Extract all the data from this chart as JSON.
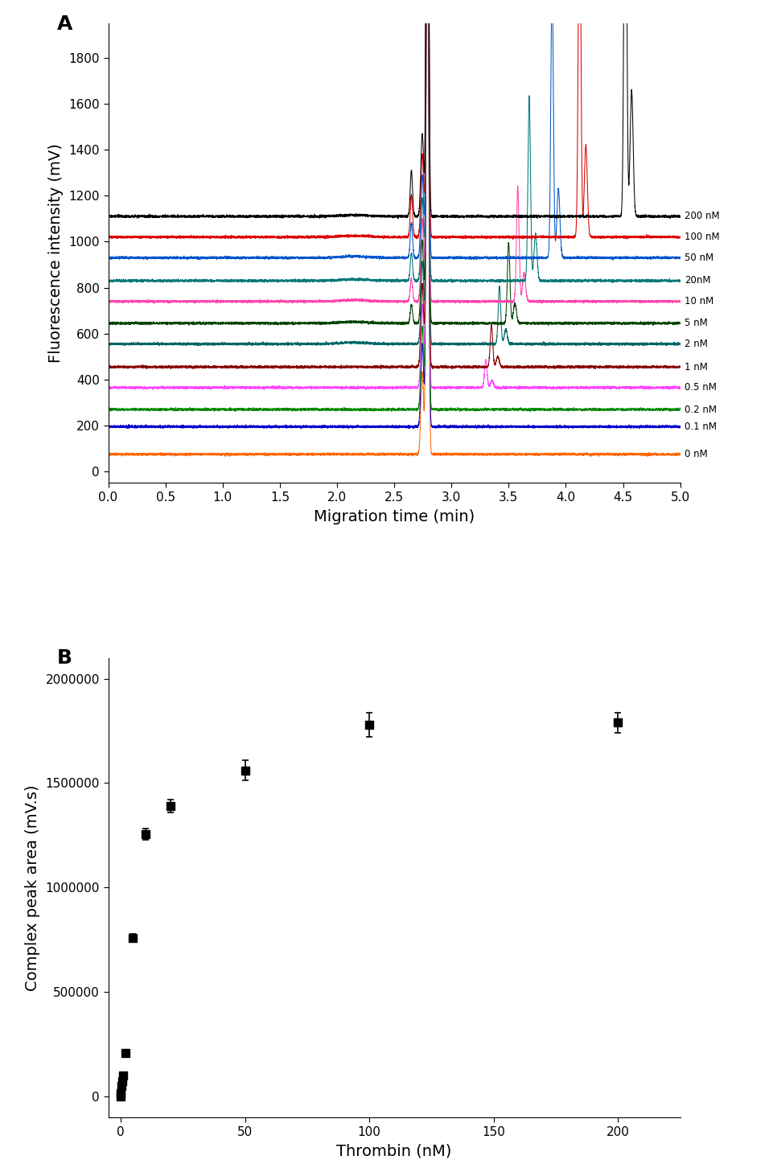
{
  "panel_A": {
    "xlabel": "Migration time (min)",
    "ylabel": "Fluorescence intensity (mV)",
    "xlim": [
      0.0,
      5.0
    ],
    "ylim": [
      -50,
      1950
    ],
    "xticks": [
      0.0,
      0.5,
      1.0,
      1.5,
      2.0,
      2.5,
      3.0,
      3.5,
      4.0,
      4.5,
      5.0
    ],
    "yticks": [
      0,
      200,
      400,
      600,
      800,
      1000,
      1200,
      1400,
      1600,
      1800
    ],
    "label": "A",
    "traces": [
      {
        "conc": "0 nM",
        "color": "#FF6600",
        "baseline": 75,
        "main_peak": 2.79,
        "main_amp": 3000,
        "complex_peak": null,
        "complex_amp": 0,
        "small_peak": null,
        "small_amp": 0
      },
      {
        "conc": "0.1 nM",
        "color": "#0000CC",
        "baseline": 195,
        "main_peak": 2.79,
        "main_amp": 3000,
        "complex_peak": null,
        "complex_amp": 0,
        "small_peak": null,
        "small_amp": 0
      },
      {
        "conc": "0.2 nM",
        "color": "#008800",
        "baseline": 270,
        "main_peak": 2.79,
        "main_amp": 3000,
        "complex_peak": null,
        "complex_amp": 0,
        "small_peak": null,
        "small_amp": 0
      },
      {
        "conc": "0.5 nM",
        "color": "#FF44FF",
        "baseline": 365,
        "main_peak": 2.79,
        "main_amp": 3000,
        "complex_peak": 3.3,
        "complex_amp": 120,
        "small_peak": null,
        "small_amp": 0
      },
      {
        "conc": "1 nM",
        "color": "#880000",
        "baseline": 455,
        "main_peak": 2.79,
        "main_amp": 3000,
        "complex_peak": 3.35,
        "complex_amp": 180,
        "small_peak": null,
        "small_amp": 0
      },
      {
        "conc": "2 nM",
        "color": "#006666",
        "baseline": 555,
        "main_peak": 2.79,
        "main_amp": 3000,
        "complex_peak": 3.42,
        "complex_amp": 250,
        "small_peak": null,
        "small_amp": 0
      },
      {
        "conc": "5 nM",
        "color": "#004400",
        "baseline": 645,
        "main_peak": 2.79,
        "main_amp": 3000,
        "complex_peak": 3.5,
        "complex_amp": 350,
        "small_peak": 2.65,
        "small_amp": 80
      },
      {
        "conc": "10 nM",
        "color": "#FF44AA",
        "baseline": 740,
        "main_peak": 2.79,
        "main_amp": 3000,
        "complex_peak": 3.58,
        "complex_amp": 500,
        "small_peak": 2.65,
        "small_amp": 100
      },
      {
        "conc": "20nM",
        "color": "#007777",
        "baseline": 830,
        "main_peak": 2.79,
        "main_amp": 3000,
        "complex_peak": 3.68,
        "complex_amp": 800,
        "small_peak": 2.65,
        "small_amp": 120
      },
      {
        "conc": "50 nM",
        "color": "#0055CC",
        "baseline": 930,
        "main_peak": 2.79,
        "main_amp": 3000,
        "complex_peak": 3.88,
        "complex_amp": 1200,
        "small_peak": 2.65,
        "small_amp": 150
      },
      {
        "conc": "100 nM",
        "color": "#DD0000",
        "baseline": 1020,
        "main_peak": 2.79,
        "main_amp": 3000,
        "complex_peak": 4.12,
        "complex_amp": 1600,
        "small_peak": 2.65,
        "small_amp": 180
      },
      {
        "conc": "200 nM",
        "color": "#000000",
        "baseline": 1110,
        "main_peak": 2.79,
        "main_amp": 3000,
        "complex_peak": 4.52,
        "complex_amp": 2200,
        "small_peak": 2.65,
        "small_amp": 200
      }
    ]
  },
  "panel_B": {
    "xlabel": "Thrombin (nM)",
    "ylabel": "Complex peak area (mV.s)",
    "xlim": [
      -5,
      225
    ],
    "ylim": [
      -100000,
      2100000
    ],
    "xticks": [
      0,
      50,
      100,
      150,
      200
    ],
    "yticks": [
      0,
      500000,
      1000000,
      1500000,
      2000000
    ],
    "ytick_labels": [
      "0",
      "500000",
      "1000000",
      "1500000",
      "2000000"
    ],
    "label": "B",
    "data": {
      "x": [
        0,
        0.1,
        0.2,
        0.5,
        1,
        2,
        5,
        10,
        20,
        50,
        100,
        200
      ],
      "y": [
        0,
        15000,
        50000,
        75000,
        100000,
        210000,
        760000,
        1255000,
        1390000,
        1560000,
        1780000,
        1790000
      ],
      "yerr": [
        4000,
        4000,
        4000,
        4000,
        8000,
        12000,
        18000,
        28000,
        32000,
        48000,
        58000,
        48000
      ]
    },
    "marker_color": "#000000",
    "marker_size": 7
  }
}
